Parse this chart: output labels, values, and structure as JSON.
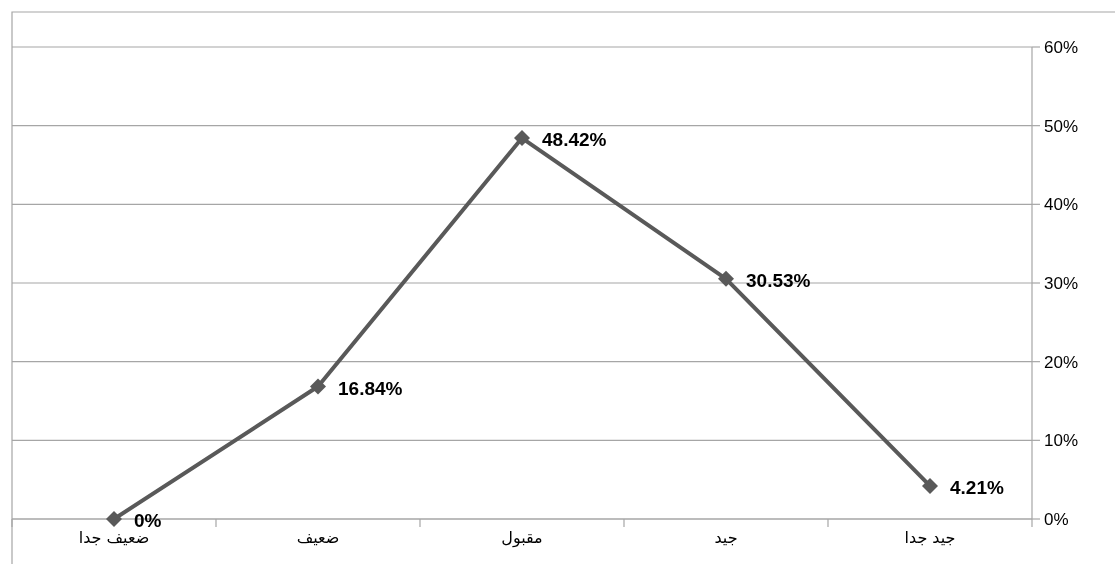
{
  "chart_data": {
    "type": "line",
    "categories": [
      "ضعيف جدا",
      "ضعيف",
      "مقبول",
      "جيد",
      "جيد جدا"
    ],
    "series": [
      {
        "color": "#595959",
        "values": [
          0,
          16.84,
          48.42,
          30.53,
          4.21
        ],
        "value_labels": [
          "0%",
          "16.84%",
          "48.42%",
          "30.53%",
          "4.21%"
        ]
      }
    ],
    "ylim": [
      0,
      60
    ],
    "yticks": [
      {
        "value": 0,
        "label": "0%"
      },
      {
        "value": 10,
        "label": "10%"
      },
      {
        "value": 20,
        "label": "20%"
      },
      {
        "value": 30,
        "label": "30%"
      },
      {
        "value": 40,
        "label": "40%"
      },
      {
        "value": 50,
        "label": "50%"
      },
      {
        "value": 60,
        "label": "60%"
      }
    ],
    "grid": "y",
    "marker": "diamond",
    "line_style": "solid"
  }
}
